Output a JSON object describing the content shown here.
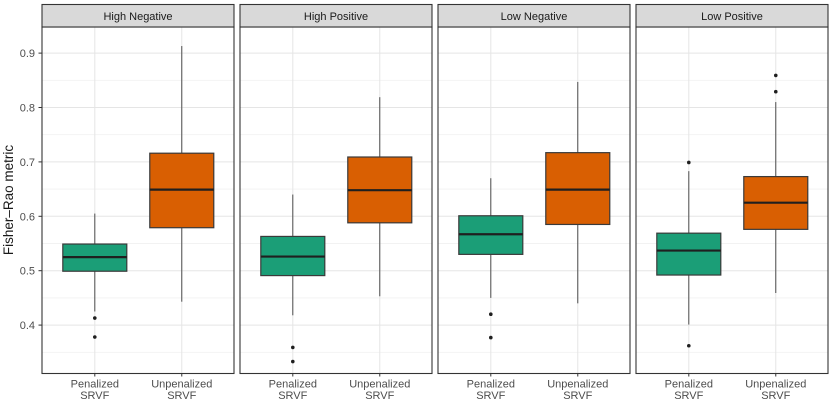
{
  "chart_data": {
    "type": "boxplot",
    "title": "",
    "ylabel": "Fisher–Rao metric",
    "ylim": [
      0.311,
      0.948
    ],
    "yticks": [
      0.4,
      0.5,
      0.6,
      0.7,
      0.8,
      0.9
    ],
    "ytick_labels": [
      "0.4",
      "0.5",
      "0.6",
      "0.7",
      "0.8",
      "0.9"
    ],
    "minor_ticks": [
      0.35,
      0.45,
      0.55,
      0.65,
      0.75,
      0.85
    ],
    "grid": {
      "major": true,
      "minor": true
    },
    "legend": "none",
    "categories": [
      {
        "key": "penalized",
        "label_lines": [
          "Penalized",
          "SRVF"
        ],
        "color": "#1b9e77"
      },
      {
        "key": "unpenalized",
        "label_lines": [
          "Unpenalized",
          "SRVF"
        ],
        "color": "#d95f02"
      }
    ],
    "facets": [
      {
        "label": "High Negative",
        "boxes": [
          {
            "series": "penalized",
            "whisker_low": 0.425,
            "q1": 0.499,
            "median": 0.525,
            "q3": 0.549,
            "whisker_high": 0.605,
            "outliers": [
              0.413,
              0.378
            ]
          },
          {
            "series": "unpenalized",
            "whisker_low": 0.443,
            "q1": 0.579,
            "median": 0.649,
            "q3": 0.716,
            "whisker_high": 0.913,
            "outliers": []
          }
        ]
      },
      {
        "label": "High Positive",
        "boxes": [
          {
            "series": "penalized",
            "whisker_low": 0.418,
            "q1": 0.491,
            "median": 0.526,
            "q3": 0.563,
            "whisker_high": 0.64,
            "outliers": [
              0.359,
              0.333
            ]
          },
          {
            "series": "unpenalized",
            "whisker_low": 0.453,
            "q1": 0.588,
            "median": 0.648,
            "q3": 0.709,
            "whisker_high": 0.819,
            "outliers": []
          }
        ]
      },
      {
        "label": "Low Negative",
        "boxes": [
          {
            "series": "penalized",
            "whisker_low": 0.45,
            "q1": 0.53,
            "median": 0.567,
            "q3": 0.601,
            "whisker_high": 0.67,
            "outliers": [
              0.42,
              0.377
            ]
          },
          {
            "series": "unpenalized",
            "whisker_low": 0.44,
            "q1": 0.585,
            "median": 0.649,
            "q3": 0.717,
            "whisker_high": 0.847,
            "outliers": []
          }
        ]
      },
      {
        "label": "Low Positive",
        "boxes": [
          {
            "series": "penalized",
            "whisker_low": 0.401,
            "q1": 0.492,
            "median": 0.537,
            "q3": 0.569,
            "whisker_high": 0.683,
            "outliers": [
              0.699,
              0.362
            ]
          },
          {
            "series": "unpenalized",
            "whisker_low": 0.459,
            "q1": 0.576,
            "median": 0.625,
            "q3": 0.673,
            "whisker_high": 0.81,
            "outliers": [
              0.859,
              0.829
            ]
          }
        ]
      }
    ],
    "style": {
      "strip_fill": "#d9d9d9",
      "strip_text": "#1a1a1a",
      "panel_fill": "#ffffff",
      "panel_border": "#343434",
      "grid_major": "#e5e5e5",
      "grid_minor": "#f2f2f2",
      "axis_text": "#4d4d4d",
      "axis_title_text": "#1a1a1a",
      "tick_mark": "#333333",
      "box_border": "#3a3a3a",
      "median_color": "#1f1f1f",
      "whisker_color": "#4d4d4d",
      "outlier_color": "#1f1f1f"
    }
  }
}
